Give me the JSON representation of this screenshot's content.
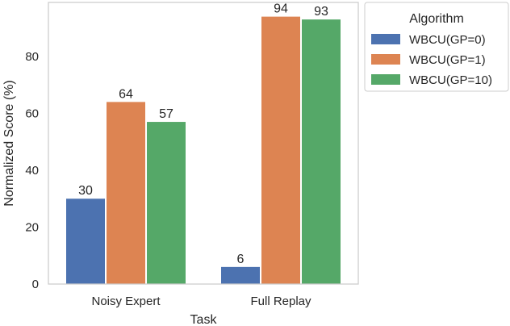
{
  "chart_data": {
    "type": "bar",
    "categories": [
      "Noisy Expert",
      "Full Replay"
    ],
    "series": [
      {
        "name": "WBCU(GP=0)",
        "values": [
          30,
          6
        ],
        "color": "#4c72b0"
      },
      {
        "name": "WBCU(GP=1)",
        "values": [
          64,
          94
        ],
        "color": "#dd8452"
      },
      {
        "name": "WBCU(GP=10)",
        "values": [
          57,
          93
        ],
        "color": "#55a868"
      }
    ],
    "data_labels": [
      [
        "30",
        "6"
      ],
      [
        "64",
        "94"
      ],
      [
        "57",
        "93"
      ]
    ],
    "xlabel": "Task",
    "ylabel": "Normalized Score (%)",
    "ylim": [
      0,
      99
    ],
    "yticks": [
      0,
      20,
      40,
      60,
      80
    ],
    "grid": false,
    "legend": {
      "title": "Algorithm",
      "placement": "outside-top-right"
    }
  }
}
